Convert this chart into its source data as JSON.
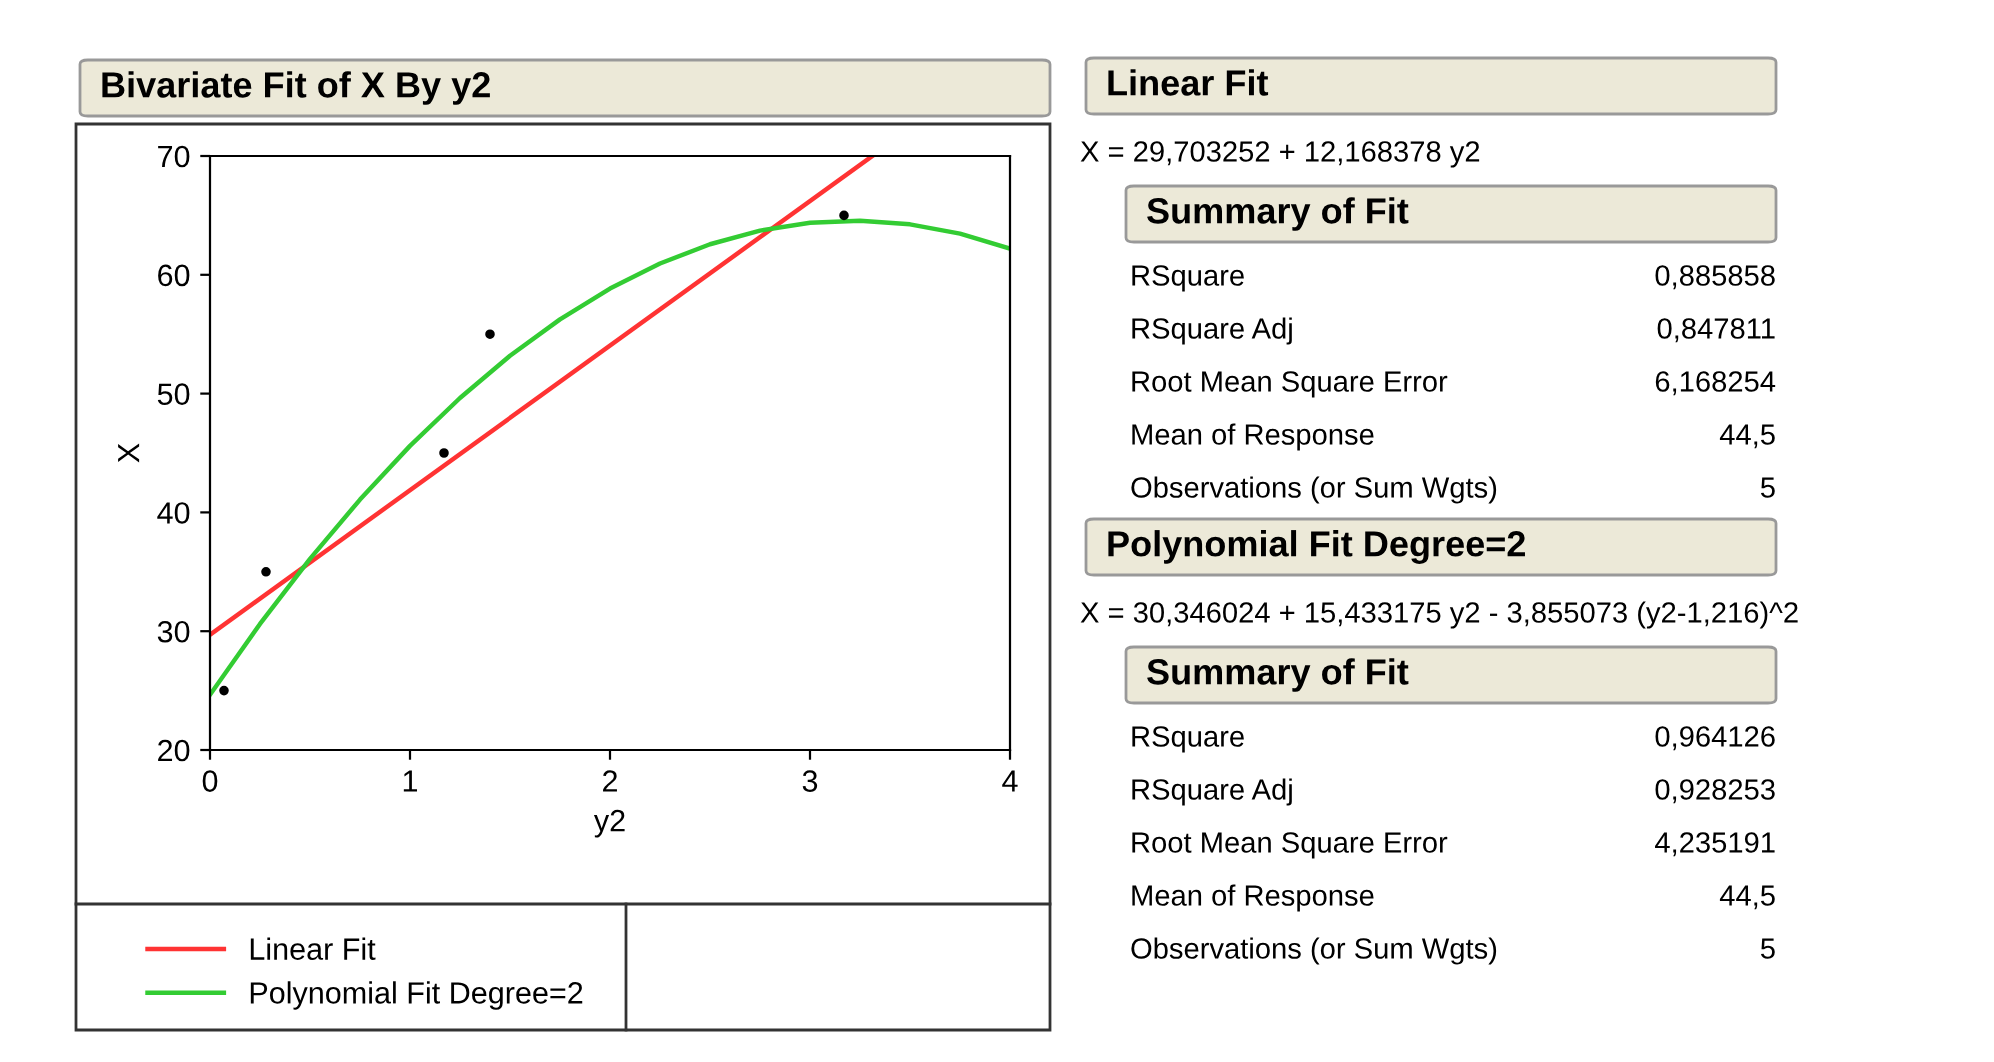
{
  "chart_data": [
    {
      "type": "scatter",
      "title": "Bivariate Fit of X By y2",
      "xlabel": "y2",
      "ylabel": "X",
      "xlim": [
        0,
        4
      ],
      "xticks": [
        0,
        1,
        2,
        3,
        4
      ],
      "ylim": [
        20,
        70
      ],
      "yticks": [
        20,
        30,
        40,
        50,
        60,
        70
      ],
      "grid": false,
      "legend": "bottom left",
      "series": [
        {
          "type": "scatter",
          "color": "#000000",
          "marker": "circle",
          "x": [
            0.07,
            0.28,
            1.17,
            1.4,
            3.17
          ],
          "values": [
            25,
            35,
            45,
            55,
            65
          ]
        },
        {
          "type": "line",
          "name": "Linear Fit",
          "color": "#ff3333",
          "line_style": "solid",
          "x": [
            0,
            3.31
          ],
          "values": [
            29.7,
            69.98
          ]
        },
        {
          "type": "line",
          "name": "Polynomial Fit Degree=2",
          "color": "#33cc33",
          "line_style": "solid",
          "x": [
            0,
            0.25,
            0.5,
            0.75,
            1,
            1.25,
            1.5,
            1.75,
            2,
            2.25,
            2.5,
            2.75,
            3,
            3.25,
            3.5,
            3.75,
            4
          ],
          "values": [
            24.65,
            30.61,
            36.09,
            41.08,
            45.6,
            49.63,
            53.18,
            56.25,
            58.84,
            60.95,
            62.57,
            63.72,
            64.38,
            64.55,
            64.25,
            63.47,
            62.2
          ]
        }
      ]
    },
    {
      "type": "other",
      "annotations": [
        "Linear Fit",
        "X = 29,703252 + 12,168378 y2",
        "Summary of Fit",
        "RSquare\t0,885858",
        "RSquare Adj\t0,847811",
        "Root Mean Square Error\t6,168254",
        "Mean of Response\t44,5",
        "Observations (or Sum Wgts)\t5",
        "Polynomial Fit Degree=2",
        "X = 30,346024 + 15,433175 y2 - 3,855073 (y2-1,216)^2",
        "Summary of Fit",
        "RSquare\t0,964126",
        "RSquare Adj\t0,928253",
        "Root Mean Square Error\t4,235191",
        "Mean of Response\t44,5",
        "Observations (or Sum Wgts)\t5"
      ]
    }
  ]
}
